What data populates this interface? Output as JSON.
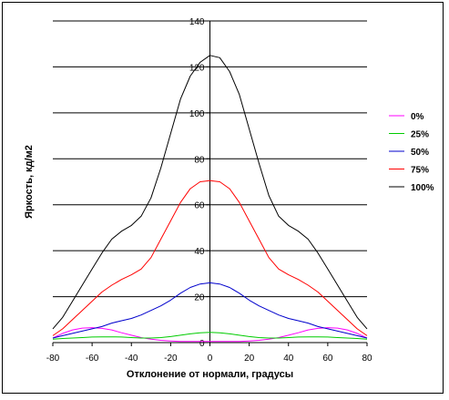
{
  "chart_data": {
    "type": "line",
    "xlabel": "Отклонение от нормали, градусы",
    "ylabel": "Яркость, кд/м2",
    "xlim": [
      -80,
      80
    ],
    "ylim": [
      0,
      140
    ],
    "xticks": [
      -80,
      -60,
      -40,
      -20,
      0,
      20,
      40,
      60,
      80
    ],
    "yticks": [
      0,
      20,
      40,
      60,
      80,
      100,
      120,
      140
    ],
    "grid": "horizontal",
    "legend_position": "right",
    "x": [
      -80,
      -75,
      -70,
      -65,
      -60,
      -55,
      -50,
      -45,
      -40,
      -35,
      -30,
      -25,
      -20,
      -15,
      -10,
      -5,
      0,
      5,
      10,
      15,
      20,
      25,
      30,
      35,
      40,
      45,
      50,
      55,
      60,
      65,
      70,
      75,
      80
    ],
    "series": [
      {
        "name": "0%",
        "color": "#ff00ff",
        "values": [
          2,
          4,
          5.5,
          6.3,
          6.5,
          6.2,
          5.5,
          4.3,
          3.2,
          2.2,
          1.5,
          1,
          0.7,
          0.5,
          0.5,
          0.5,
          0.5,
          0.5,
          0.5,
          0.5,
          0.7,
          1,
          1.5,
          2.2,
          3.2,
          4.3,
          5.5,
          6.2,
          6.5,
          6.3,
          5.5,
          4,
          2
        ]
      },
      {
        "name": "25%",
        "color": "#00cc00",
        "values": [
          1.5,
          1.8,
          2,
          2.2,
          2.4,
          2.5,
          2.5,
          2.4,
          2.2,
          2,
          2,
          2.2,
          2.6,
          3.2,
          3.8,
          4.3,
          4.5,
          4.3,
          3.8,
          3.2,
          2.6,
          2.2,
          2,
          2,
          2.2,
          2.4,
          2.5,
          2.5,
          2.4,
          2.2,
          2,
          1.8,
          1.5
        ]
      },
      {
        "name": "50%",
        "color": "#0000cc",
        "values": [
          2,
          3,
          4,
          5,
          6,
          7,
          8.5,
          9.5,
          10.5,
          12,
          14,
          16,
          18.5,
          21.5,
          24,
          25.5,
          26,
          25.5,
          24,
          21.5,
          18.5,
          16,
          14,
          12,
          10.5,
          9.5,
          8.5,
          7,
          6,
          5,
          4,
          3,
          2
        ]
      },
      {
        "name": "75%",
        "color": "#ff0000",
        "values": [
          3,
          6,
          10,
          14,
          18,
          22,
          25,
          27.5,
          29.5,
          32,
          37,
          45,
          53,
          61,
          67,
          70,
          70.5,
          70,
          67,
          61,
          53,
          45,
          37,
          32,
          29.5,
          27.5,
          25,
          22,
          18,
          14,
          10,
          6,
          3
        ]
      },
      {
        "name": "100%",
        "color": "#000000",
        "values": [
          6,
          11,
          18,
          25,
          32,
          39,
          45,
          48.5,
          51,
          55,
          63,
          76,
          91,
          106,
          116,
          122,
          125,
          124,
          118,
          108,
          93,
          78,
          64,
          55,
          51,
          48.5,
          45,
          39,
          32,
          25,
          18,
          11,
          6
        ]
      }
    ]
  }
}
